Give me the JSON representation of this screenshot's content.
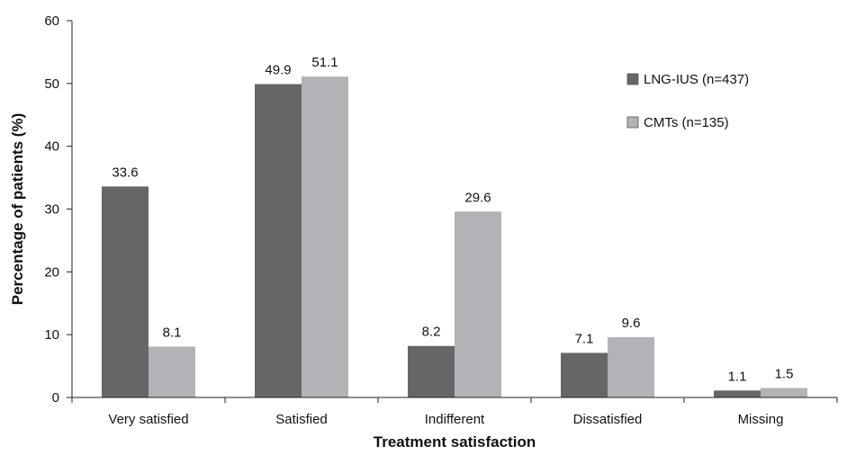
{
  "chart_data": {
    "type": "bar",
    "title": "",
    "xlabel": "Treatment satisfaction",
    "ylabel": "Percentage of patients (%)",
    "ylim": [
      0,
      60
    ],
    "yticks": [
      0,
      10,
      20,
      30,
      40,
      50,
      60
    ],
    "grid": false,
    "legend_position": "top-right",
    "categories": [
      "Very satisfied",
      "Satisfied",
      "Indifferent",
      "Dissatisfied",
      "Missing"
    ],
    "series": [
      {
        "name": "LNG-IUS (n=437)",
        "color": "#666668",
        "values": [
          33.6,
          49.9,
          8.2,
          7.1,
          1.1
        ]
      },
      {
        "name": "CMTs (n=135)",
        "color": "#b3b3b7",
        "values": [
          8.1,
          51.1,
          29.6,
          9.6,
          1.5
        ]
      }
    ]
  }
}
